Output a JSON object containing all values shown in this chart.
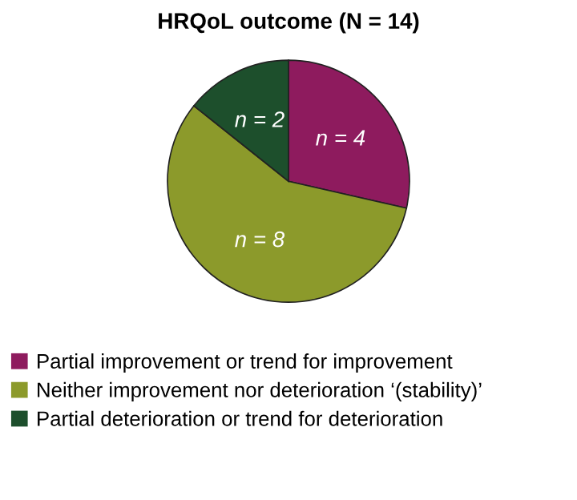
{
  "chart_data": {
    "type": "pie",
    "title": "HRQoL outcome (N = 14)",
    "categories": [
      "Partial improvement or trend for improvement",
      "Neither improvement nor deterioration ‘(stability)’",
      "Partial deterioration or trend for deterioration"
    ],
    "values": [
      4,
      8,
      2
    ],
    "colors": [
      "#8e1b5e",
      "#8c9a2b",
      "#1d4f2c"
    ],
    "value_labels": [
      "n = 4",
      "n = 8",
      "n = 2"
    ],
    "legend": "bottom"
  }
}
